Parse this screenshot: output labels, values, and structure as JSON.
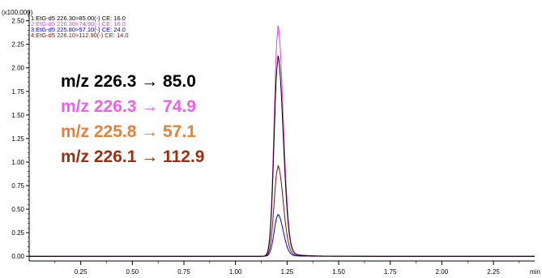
{
  "chart_data": {
    "type": "line",
    "y_multiplier": "(x100,000)",
    "x_unit": "min",
    "xlim": [
      0.0,
      2.45
    ],
    "ylim": [
      -0.05,
      2.6
    ],
    "x_ticks": [
      "0.25",
      "0.50",
      "0.75",
      "1.00",
      "1.25",
      "1.50",
      "1.75",
      "2.00",
      "2.25"
    ],
    "x_tick_values": [
      0.25,
      0.5,
      0.75,
      1.0,
      1.25,
      1.5,
      1.75,
      2.0,
      2.25
    ],
    "y_ticks": [
      "0.00",
      "0.25",
      "0.50",
      "0.75",
      "1.00",
      "1.25",
      "1.50",
      "1.75",
      "2.00",
      "2.25",
      "2.50"
    ],
    "y_tick_values": [
      0,
      0.25,
      0.5,
      0.75,
      1.0,
      1.25,
      1.5,
      1.75,
      2.0,
      2.25,
      2.5
    ],
    "legend": [
      "1:EtG-d5 226.30>85.00(-) CE: 16.0",
      "2:EtG-d5 226.30>74.90(-) CE: 16.0",
      "3:EtG-d5 225.80>57.10(-) CE: 24.0",
      "4:EtG-d5 226.10>112.90(-) CE: 14.0"
    ],
    "series": [
      {
        "color": "#000000",
        "peak_rt": 1.205,
        "peak_height": 2.06
      },
      {
        "color": "#e040e0",
        "peak_rt": 1.205,
        "peak_height": 2.37
      },
      {
        "color": "#0000d0",
        "peak_rt": 1.205,
        "peak_height": 0.43
      },
      {
        "color": "#7a1010",
        "peak_rt": 1.205,
        "peak_height": 0.93
      }
    ]
  },
  "annotations": [
    {
      "text": "m/z 226.3 → 85.0",
      "color": "#000000"
    },
    {
      "text": "m/z 226.3 → 74.9",
      "color": "#f060e8"
    },
    {
      "text": "m/z 225.8 → 57.1",
      "color": "#e8803a"
    },
    {
      "text": "m/z 226.1 → 112.9",
      "color": "#9a3010"
    }
  ]
}
